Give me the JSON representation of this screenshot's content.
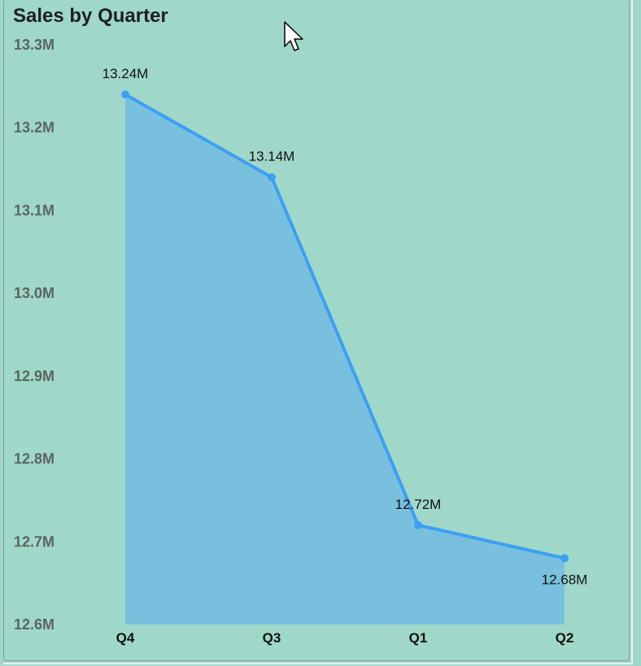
{
  "visual": {
    "title": "Sales by Quarter"
  },
  "chart_data": {
    "type": "area",
    "title": "Sales by Quarter",
    "xlabel": "",
    "ylabel": "",
    "categories": [
      "Q4",
      "Q3",
      "Q1",
      "Q2"
    ],
    "values": [
      13.24,
      13.14,
      12.72,
      12.68
    ],
    "unit": "M",
    "data_labels": [
      "13.24M",
      "13.14M",
      "12.72M",
      "12.68M"
    ],
    "ylim": [
      12.6,
      13.3
    ],
    "yticks": [
      "13.3M",
      "13.2M",
      "13.1M",
      "13.0M",
      "12.9M",
      "12.8M",
      "12.7M",
      "12.6M"
    ],
    "grid": false,
    "legend": "none",
    "colors": {
      "line": "#3d9ff5",
      "fill": "#79c0de",
      "background": "#9fd8c8"
    }
  },
  "icons": {
    "cursor": "mouse-pointer-icon"
  }
}
